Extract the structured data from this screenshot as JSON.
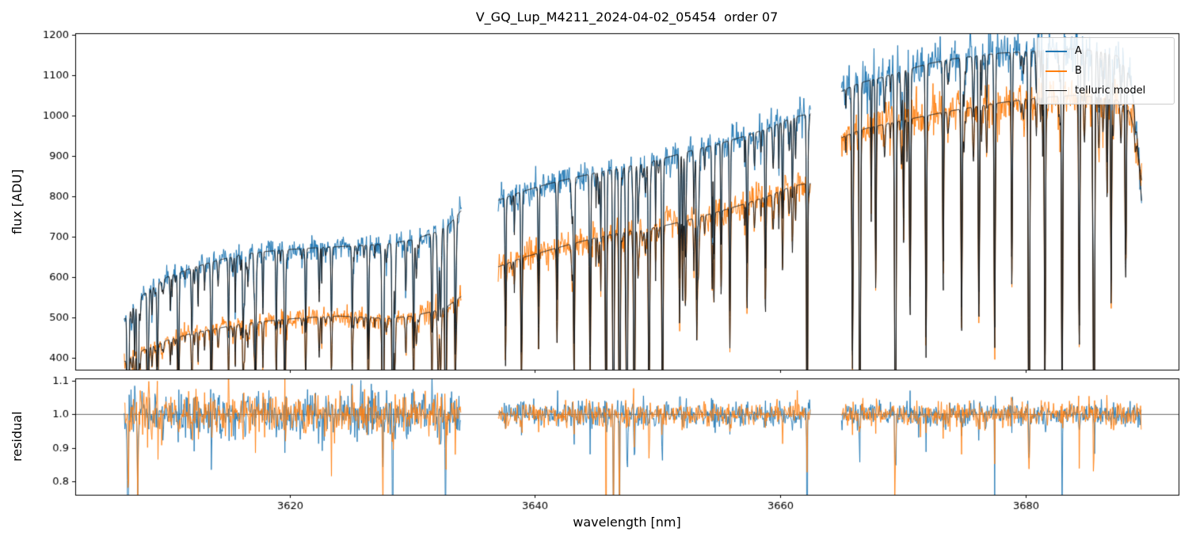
{
  "chart_data": [
    {
      "type": "line",
      "title": "V_GQ_Lup_M4211_2024-04-02_05454  order 07",
      "xlabel": "",
      "ylabel": "flux [ADU]",
      "xlim": [
        3602.5,
        3692.5
      ],
      "ylim": [
        370,
        1204
      ],
      "yticks": [
        400,
        500,
        600,
        700,
        800,
        900,
        1000,
        1100,
        1200
      ],
      "ytick_labels": [
        "400",
        "500",
        "600",
        "700",
        "800",
        "900",
        "1000",
        "1100",
        "1200"
      ],
      "xticks": [
        3620,
        3640,
        3660,
        3680
      ],
      "xtick_labels": [
        "3620",
        "3640",
        "3660",
        "3680"
      ],
      "grid": false,
      "legend": {
        "position": "upper right",
        "entries": [
          {
            "label": "A",
            "color": "#1f77b4"
          },
          {
            "label": "B",
            "color": "#ff7f0e"
          },
          {
            "label": "telluric model",
            "color": "#1a1a1a"
          }
        ]
      },
      "segments": [
        [
          3606.5,
          3634.0
        ],
        [
          3637.0,
          3662.5
        ],
        [
          3665.0,
          3689.5
        ]
      ],
      "series": [
        {
          "name": "A",
          "color": "#1f77b4",
          "line_width": 1,
          "noise_sigma": 0.022,
          "seed": 101,
          "continuum": [
            [
              3606.5,
              495
            ],
            [
              3608,
              555
            ],
            [
              3610,
              600
            ],
            [
              3612,
              622
            ],
            [
              3614,
              640
            ],
            [
              3616,
              655
            ],
            [
              3618,
              663
            ],
            [
              3620,
              668
            ],
            [
              3622,
              672
            ],
            [
              3624,
              675
            ],
            [
              3626,
              678
            ],
            [
              3628,
              682
            ],
            [
              3630,
              692
            ],
            [
              3632,
              712
            ],
            [
              3633,
              730
            ],
            [
              3634,
              765
            ],
            [
              3637,
              790
            ],
            [
              3639,
              812
            ],
            [
              3641,
              830
            ],
            [
              3643,
              845
            ],
            [
              3645,
              858
            ],
            [
              3647,
              870
            ],
            [
              3649,
              882
            ],
            [
              3651,
              898
            ],
            [
              3653,
              915
            ],
            [
              3655,
              930
            ],
            [
              3657,
              948
            ],
            [
              3659,
              968
            ],
            [
              3661,
              995
            ],
            [
              3662.5,
              1005
            ],
            [
              3665,
              1060
            ],
            [
              3666,
              1075
            ],
            [
              3667,
              1085
            ],
            [
              3668,
              1092
            ],
            [
              3670,
              1110
            ],
            [
              3672,
              1128
            ],
            [
              3674,
              1140
            ],
            [
              3676,
              1148
            ],
            [
              3678,
              1155
            ],
            [
              3680,
              1158
            ],
            [
              3682,
              1162
            ],
            [
              3684,
              1165
            ],
            [
              3686,
              1160
            ],
            [
              3687.5,
              1148
            ],
            [
              3688.5,
              1100
            ],
            [
              3689,
              1000
            ],
            [
              3689.5,
              780
            ]
          ]
        },
        {
          "name": "B",
          "color": "#ff7f0e",
          "line_width": 1,
          "noise_sigma": 0.026,
          "seed": 202,
          "continuum": [
            [
              3606.5,
              390
            ],
            [
              3608,
              418
            ],
            [
              3610,
              443
            ],
            [
              3612,
              460
            ],
            [
              3614,
              472
            ],
            [
              3616,
              483
            ],
            [
              3618,
              490
            ],
            [
              3620,
              496
            ],
            [
              3622,
              500
            ],
            [
              3624,
              503
            ],
            [
              3626,
              500
            ],
            [
              3628,
              497
            ],
            [
              3630,
              503
            ],
            [
              3632,
              517
            ],
            [
              3633,
              530
            ],
            [
              3634,
              552
            ],
            [
              3637,
              625
            ],
            [
              3639,
              648
            ],
            [
              3641,
              665
            ],
            [
              3643,
              682
            ],
            [
              3645,
              697
            ],
            [
              3647,
              710
            ],
            [
              3649,
              718
            ],
            [
              3651,
              730
            ],
            [
              3653,
              745
            ],
            [
              3655,
              762
            ],
            [
              3657,
              780
            ],
            [
              3659,
              800
            ],
            [
              3661,
              825
            ],
            [
              3662.5,
              833
            ],
            [
              3665,
              945
            ],
            [
              3666,
              958
            ],
            [
              3667,
              968
            ],
            [
              3668,
              975
            ],
            [
              3670,
              988
            ],
            [
              3672,
              1000
            ],
            [
              3674,
              1012
            ],
            [
              3676,
              1022
            ],
            [
              3678,
              1032
            ],
            [
              3680,
              1040
            ],
            [
              3682,
              1046
            ],
            [
              3684,
              1050
            ],
            [
              3686,
              1046
            ],
            [
              3687.5,
              1038
            ],
            [
              3688.5,
              1010
            ],
            [
              3689,
              950
            ],
            [
              3689.5,
              835
            ]
          ]
        },
        {
          "name": "telluric model",
          "color": "#1a1a1a",
          "line_width": 1,
          "applies_to": [
            "A",
            "B"
          ]
        }
      ],
      "telluric_lines": [
        [
          3606.8,
          0.95,
          0.08
        ],
        [
          3607.6,
          1.0,
          0.07
        ],
        [
          3608.4,
          0.5,
          0.06
        ],
        [
          3609.2,
          0.35,
          0.06
        ],
        [
          3610.9,
          0.45,
          0.07
        ],
        [
          3612.0,
          0.2,
          0.06
        ],
        [
          3613.6,
          0.5,
          0.07
        ],
        [
          3615.0,
          0.22,
          0.06
        ],
        [
          3616.2,
          0.3,
          0.06
        ],
        [
          3617.2,
          0.45,
          0.07
        ],
        [
          3618.9,
          0.3,
          0.06
        ],
        [
          3619.6,
          0.55,
          0.07
        ],
        [
          3621.3,
          0.32,
          0.06
        ],
        [
          3622.4,
          0.2,
          0.06
        ],
        [
          3623.4,
          0.28,
          0.06
        ],
        [
          3625.1,
          0.3,
          0.06
        ],
        [
          3626.4,
          0.38,
          0.06
        ],
        [
          3627.6,
          1.0,
          0.08
        ],
        [
          3628.4,
          0.92,
          0.07
        ],
        [
          3630.1,
          0.4,
          0.06
        ],
        [
          3631.6,
          0.3,
          0.06
        ],
        [
          3632.7,
          0.8,
          0.07
        ],
        [
          3633.5,
          0.45,
          0.06
        ],
        [
          3637.6,
          0.4,
          0.06
        ],
        [
          3638.9,
          0.5,
          0.07
        ],
        [
          3640.3,
          0.3,
          0.06
        ],
        [
          3641.8,
          0.35,
          0.06
        ],
        [
          3643.2,
          0.4,
          0.06
        ],
        [
          3644.5,
          0.5,
          0.07
        ],
        [
          3645.8,
          0.85,
          0.07
        ],
        [
          3646.4,
          1.0,
          0.07
        ],
        [
          3646.9,
          1.0,
          0.07
        ],
        [
          3647.5,
          1.0,
          0.07
        ],
        [
          3648.1,
          0.95,
          0.07
        ],
        [
          3649.3,
          0.6,
          0.07
        ],
        [
          3650.4,
          0.75,
          0.07
        ],
        [
          3651.8,
          0.35,
          0.06
        ],
        [
          3653.2,
          0.4,
          0.06
        ],
        [
          3654.6,
          0.3,
          0.06
        ],
        [
          3655.9,
          0.45,
          0.06
        ],
        [
          3657.3,
          0.3,
          0.06
        ],
        [
          3658.8,
          0.35,
          0.06
        ],
        [
          3660.2,
          0.25,
          0.06
        ],
        [
          3661.0,
          0.2,
          0.06
        ],
        [
          3662.2,
          1.0,
          0.06
        ],
        [
          3665.9,
          0.6,
          0.07
        ],
        [
          3666.5,
          0.9,
          0.07
        ],
        [
          3667.8,
          0.4,
          0.06
        ],
        [
          3669.4,
          1.0,
          0.08
        ],
        [
          3670.6,
          0.5,
          0.07
        ],
        [
          3671.9,
          0.6,
          0.07
        ],
        [
          3673.3,
          0.45,
          0.06
        ],
        [
          3674.8,
          0.55,
          0.07
        ],
        [
          3676.2,
          0.5,
          0.06
        ],
        [
          3677.5,
          0.6,
          0.07
        ],
        [
          3678.9,
          0.45,
          0.06
        ],
        [
          3680.3,
          1.0,
          0.08
        ],
        [
          3681.6,
          0.7,
          0.07
        ],
        [
          3683.0,
          0.8,
          0.07
        ],
        [
          3684.4,
          0.6,
          0.07
        ],
        [
          3685.6,
          1.0,
          0.08
        ],
        [
          3687.0,
          0.5,
          0.06
        ],
        [
          3688.2,
          0.4,
          0.06
        ]
      ],
      "micro_lines": {
        "count": 170,
        "depth_range": [
          0.03,
          0.33
        ],
        "width_range": [
          0.03,
          0.08
        ],
        "seed": 20240402
      }
    },
    {
      "type": "line",
      "xlabel": "wavelength [nm]",
      "ylabel": "residual",
      "ylim": [
        0.761,
        1.107
      ],
      "yticks": [
        0.8,
        0.9,
        1.0,
        1.1
      ],
      "ytick_labels": [
        "0.8",
        "0.9",
        "1.0",
        "1.1"
      ],
      "hline": 1.0,
      "series": [
        {
          "name": "A / telluric model",
          "color": "#1f77b4",
          "seed": 303,
          "sigma_per_segment": [
            0.03,
            0.017,
            0.017
          ]
        },
        {
          "name": "B / telluric model",
          "color": "#ff7f0e",
          "seed": 404,
          "sigma_per_segment": [
            0.03,
            0.017,
            0.017
          ]
        }
      ]
    }
  ]
}
